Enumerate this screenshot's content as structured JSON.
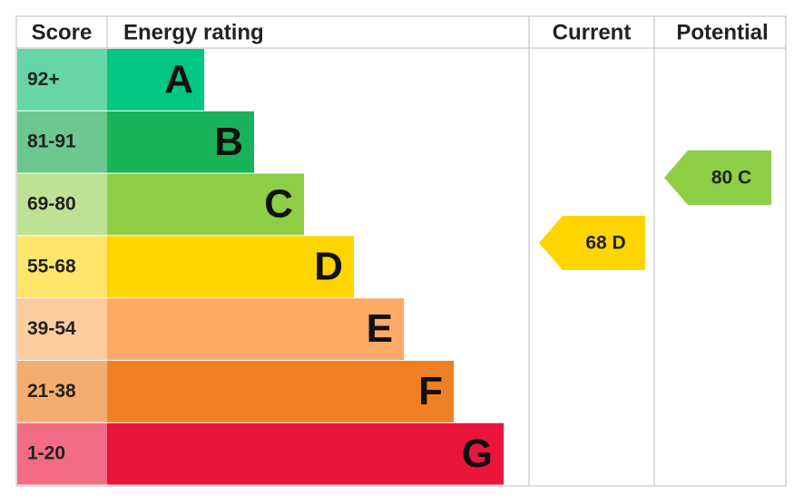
{
  "headers": {
    "score": "Score",
    "rating": "Energy rating",
    "current": "Current",
    "potential": "Potential"
  },
  "bands": [
    {
      "score": "92+",
      "letter": "A",
      "color": "#00c781",
      "score_color": "#66d6a8"
    },
    {
      "score": "81-91",
      "letter": "B",
      "color": "#19b459",
      "score_color": "#6cc88e"
    },
    {
      "score": "69-80",
      "letter": "C",
      "color": "#8dce46",
      "score_color": "#bde296"
    },
    {
      "score": "55-68",
      "letter": "D",
      "color": "#ffd500",
      "score_color": "#ffe569"
    },
    {
      "score": "39-54",
      "letter": "E",
      "color": "#fcaa65",
      "score_color": "#fdcc9f"
    },
    {
      "score": "21-38",
      "letter": "F",
      "color": "#ef8023",
      "score_color": "#f5ad6f"
    },
    {
      "score": "1-20",
      "letter": "G",
      "color": "#e9153b",
      "score_color": "#f16c84"
    }
  ],
  "current": {
    "label": "68 D",
    "color": "#ffd500"
  },
  "potential": {
    "label": "80 C",
    "color": "#8dce46"
  }
}
